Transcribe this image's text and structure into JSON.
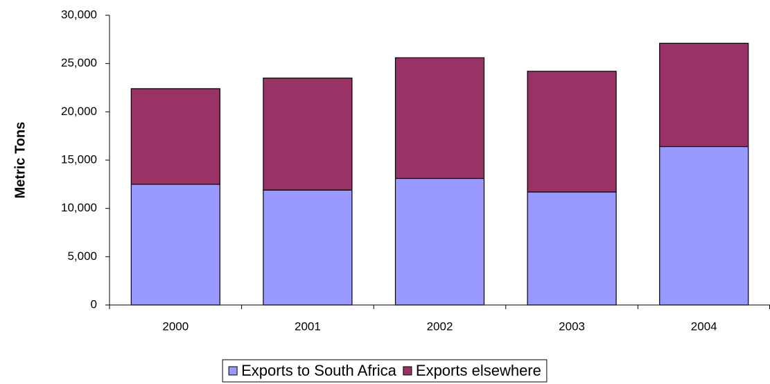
{
  "chart_data": {
    "type": "stacked_bar",
    "y_label": "Metric Tons",
    "categories": [
      "2000",
      "2001",
      "2002",
      "2003",
      "2004"
    ],
    "series": [
      {
        "name": "Exports to South Africa",
        "color": "#9999ff",
        "values": [
          12500,
          11900,
          13100,
          11700,
          16400
        ]
      },
      {
        "name": "Exports elsewhere",
        "color": "#993366",
        "values": [
          9900,
          11600,
          12500,
          12500,
          10700
        ]
      }
    ],
    "ylim": [
      0,
      30000
    ],
    "yticks": [
      0,
      {
        "value": 5000,
        "label": "5,000"
      },
      {
        "value": 10000,
        "label": "10,000"
      },
      {
        "value": 15000,
        "label": "15,000"
      },
      {
        "value": 20000,
        "label": "20,000"
      },
      {
        "value": 25000,
        "label": "25,000"
      },
      {
        "value": 30000,
        "label": "30,000"
      }
    ]
  }
}
